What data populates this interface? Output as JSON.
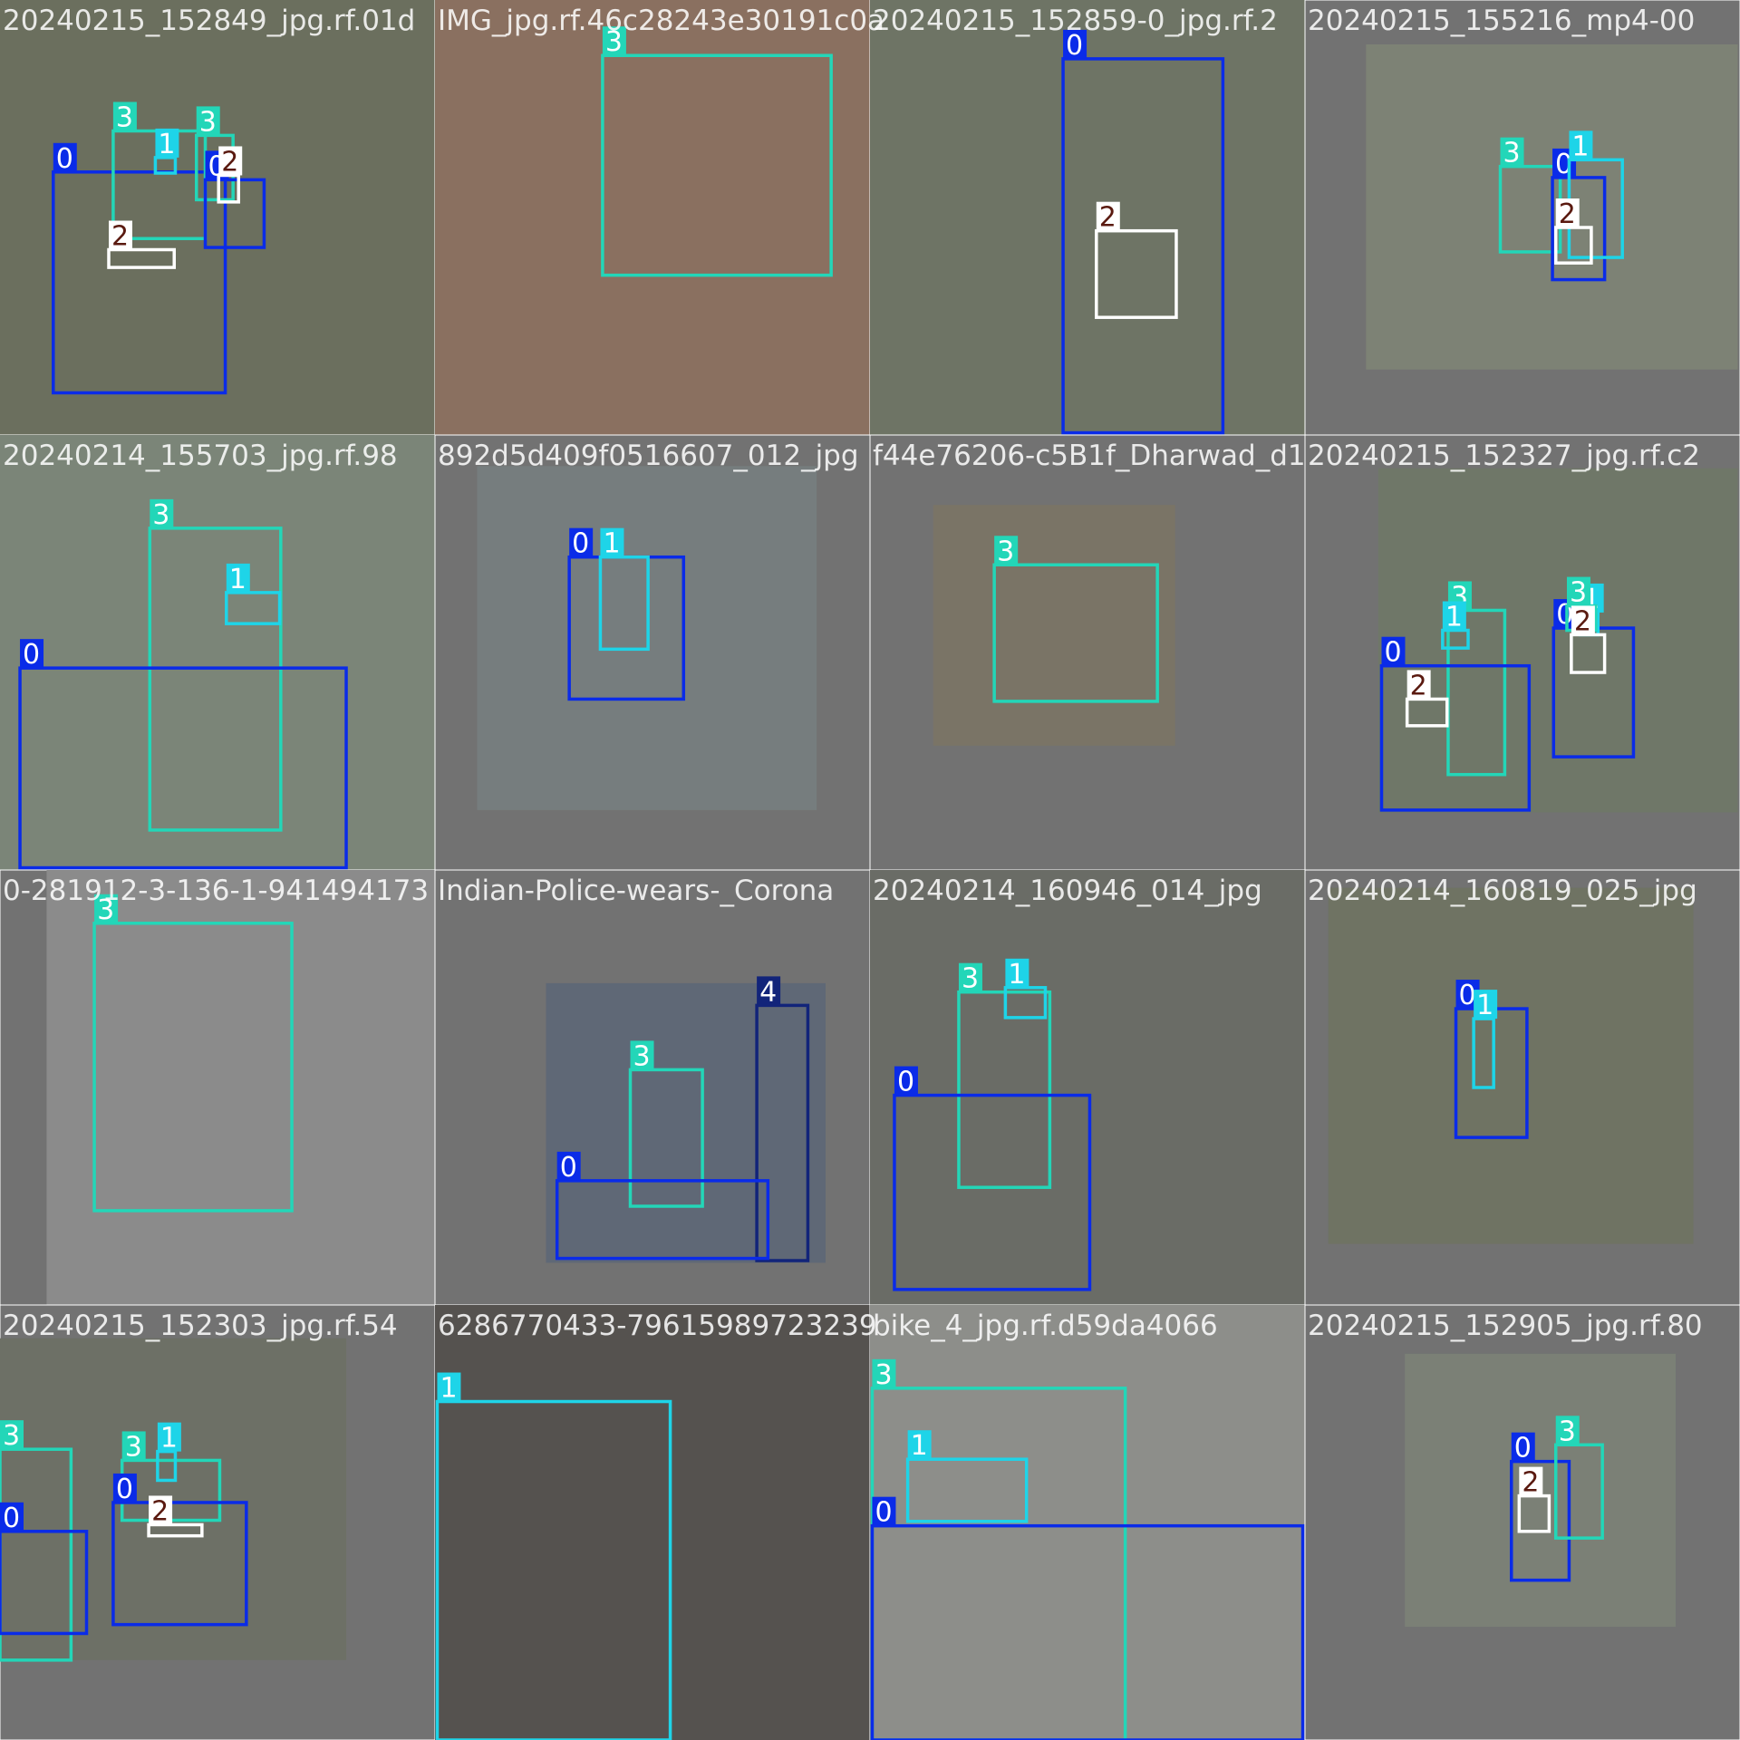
{
  "class_colors": [
    "#0a2be8",
    "#1ed4e8",
    "#ffffff",
    "#23d6b8",
    "#12247a"
  ],
  "tiles": [
    {
      "filename": "20240215_152849_jpg.rf.01d",
      "boxes": [
        {
          "label": "0"
        },
        {
          "label": "3"
        },
        {
          "label": "1"
        },
        {
          "label": "3"
        },
        {
          "label": "0"
        },
        {
          "label": "2"
        },
        {
          "label": "2"
        }
      ]
    },
    {
      "filename": "IMG_jpg.rf.46c28243e30191c0a",
      "boxes": [
        {
          "label": "3"
        }
      ]
    },
    {
      "filename": "20240215_152859-0_jpg.rf.2",
      "boxes": [
        {
          "label": "0"
        },
        {
          "label": "2"
        }
      ]
    },
    {
      "filename": "20240215_155216_mp4-00",
      "boxes": [
        {
          "label": "3"
        },
        {
          "label": "0"
        },
        {
          "label": "1"
        },
        {
          "label": "2"
        }
      ]
    },
    {
      "filename": "20240214_155703_jpg.rf.98",
      "boxes": [
        {
          "label": "3"
        },
        {
          "label": "1"
        },
        {
          "label": "0"
        }
      ]
    },
    {
      "filename": "892d5d409f0516607_012_jpg",
      "boxes": [
        {
          "label": "0"
        },
        {
          "label": "1"
        }
      ]
    },
    {
      "filename": "f44e76206-c5B1f_Dharwad_d1",
      "boxes": [
        {
          "label": "3"
        }
      ]
    },
    {
      "filename": "20240215_152327_jpg.rf.c2",
      "boxes": [
        {
          "label": "3"
        },
        {
          "label": "1"
        },
        {
          "label": "0"
        },
        {
          "label": "2"
        },
        {
          "label": "0"
        },
        {
          "label": "1"
        },
        {
          "label": "3"
        },
        {
          "label": "2"
        }
      ]
    },
    {
      "filename": "0-281912-3-136-1-941494173",
      "boxes": [
        {
          "label": "3"
        }
      ]
    },
    {
      "filename": "Indian-Police-wears-_Corona",
      "boxes": [
        {
          "label": "3"
        },
        {
          "label": "4"
        },
        {
          "label": "0"
        }
      ]
    },
    {
      "filename": "20240214_160946_014_jpg",
      "boxes": [
        {
          "label": "3"
        },
        {
          "label": "1"
        },
        {
          "label": "0"
        }
      ]
    },
    {
      "filename": "20240214_160819_025_jpg",
      "boxes": [
        {
          "label": "0"
        },
        {
          "label": "1"
        }
      ]
    },
    {
      "filename": "20240215_152303_jpg.rf.54",
      "boxes": [
        {
          "label": "3"
        },
        {
          "label": "0"
        },
        {
          "label": "3"
        },
        {
          "label": "1"
        },
        {
          "label": "0"
        },
        {
          "label": "2"
        }
      ]
    },
    {
      "filename": "6286770433-79615989723239",
      "boxes": [
        {
          "label": "1"
        }
      ]
    },
    {
      "filename": "bike_4_jpg.rf.d59da4066",
      "boxes": [
        {
          "label": "3"
        },
        {
          "label": "1"
        },
        {
          "label": "0"
        }
      ]
    },
    {
      "filename": "20240215_152905_jpg.rf.80",
      "boxes": [
        {
          "label": "0"
        },
        {
          "label": "3"
        },
        {
          "label": "2"
        }
      ]
    }
  ]
}
